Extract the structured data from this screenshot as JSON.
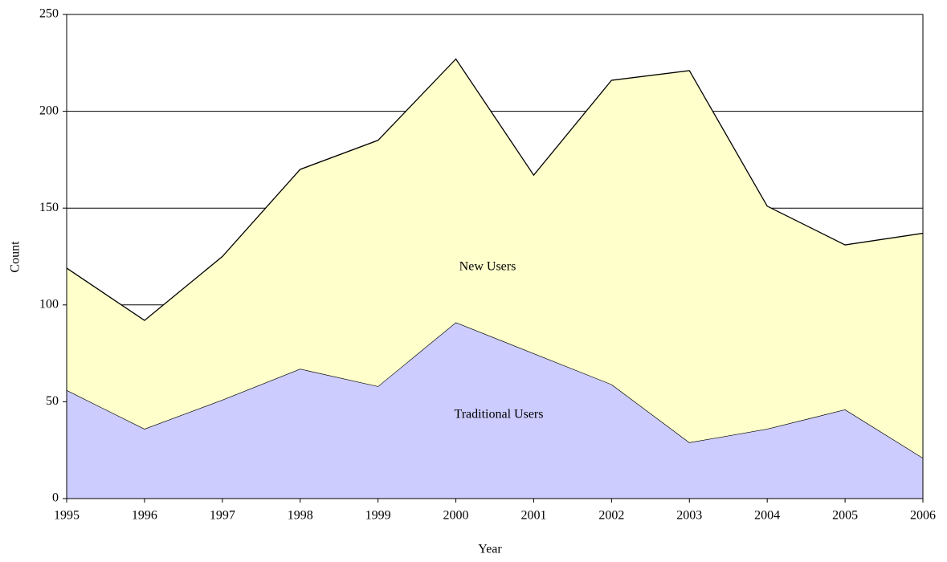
{
  "chart_data": {
    "type": "stacked-area",
    "x_label": "Year",
    "y_label": "Count",
    "x": [
      1995,
      1996,
      1997,
      1998,
      1999,
      2000,
      2001,
      2002,
      2003,
      2004,
      2005,
      2006
    ],
    "series": [
      {
        "name": "Traditional Users",
        "color": "#ccccff",
        "values": [
          56,
          36,
          51,
          67,
          58,
          91,
          75,
          59,
          29,
          36,
          46,
          21
        ]
      },
      {
        "name": "New Users",
        "color": "#ffffcc",
        "values": [
          63,
          56,
          74,
          103,
          127,
          136,
          92,
          157,
          192,
          115,
          85,
          116
        ]
      }
    ],
    "xlim": [
      1995,
      2006
    ],
    "xticks": [
      1995,
      1996,
      1997,
      1998,
      1999,
      2000,
      2001,
      2002,
      2003,
      2004,
      2005,
      2006
    ],
    "ylim": [
      0,
      250
    ],
    "yticks": [
      0,
      50,
      100,
      150,
      200,
      250
    ],
    "grid": true
  }
}
